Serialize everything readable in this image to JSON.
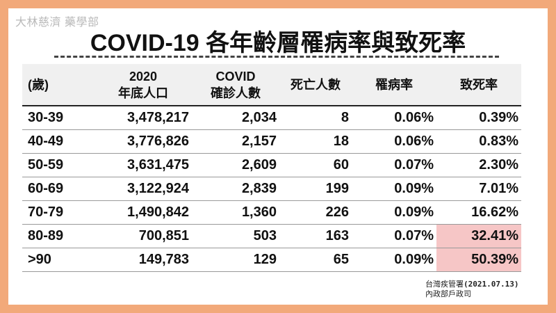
{
  "watermark": "大林慈濟 藥學部",
  "title": "COVID-19 各年齡層罹病率與致死率",
  "headers": [
    [
      "(歲)"
    ],
    [
      "2020",
      "年底人口"
    ],
    [
      "COVID",
      "確診人數"
    ],
    [
      "死亡人數"
    ],
    [
      "罹病率"
    ],
    [
      "致死率"
    ]
  ],
  "rows": [
    {
      "age": "30-39",
      "population": "3,478,217",
      "cases": "2,034",
      "deaths": "8",
      "infection_rate": "0.06%",
      "fatality_rate": "0.39%",
      "highlight": false
    },
    {
      "age": "40-49",
      "population": "3,776,826",
      "cases": "2,157",
      "deaths": "18",
      "infection_rate": "0.06%",
      "fatality_rate": "0.83%",
      "highlight": false
    },
    {
      "age": "50-59",
      "population": "3,631,475",
      "cases": "2,609",
      "deaths": "60",
      "infection_rate": "0.07%",
      "fatality_rate": "2.30%",
      "highlight": false
    },
    {
      "age": "60-69",
      "population": "3,122,924",
      "cases": "2,839",
      "deaths": "199",
      "infection_rate": "0.09%",
      "fatality_rate": "7.01%",
      "highlight": false
    },
    {
      "age": "70-79",
      "population": "1,490,842",
      "cases": "1,360",
      "deaths": "226",
      "infection_rate": "0.09%",
      "fatality_rate": "16.62%",
      "highlight": false
    },
    {
      "age": "80-89",
      "population": "700,851",
      "cases": "503",
      "deaths": "163",
      "infection_rate": "0.07%",
      "fatality_rate": "32.41%",
      "highlight": true
    },
    {
      "age": ">90",
      "population": "149,783",
      "cases": "129",
      "deaths": "65",
      "infection_rate": "0.09%",
      "fatality_rate": "50.39%",
      "highlight": true
    }
  ],
  "source": {
    "agency": "台灣疾管署",
    "date": "(2021.07.13)",
    "ministry": "內政部戶政司"
  },
  "colors": {
    "frame": "#f2a97a",
    "header_bg": "#f0f0f0",
    "highlight": "#f6c6c6"
  }
}
